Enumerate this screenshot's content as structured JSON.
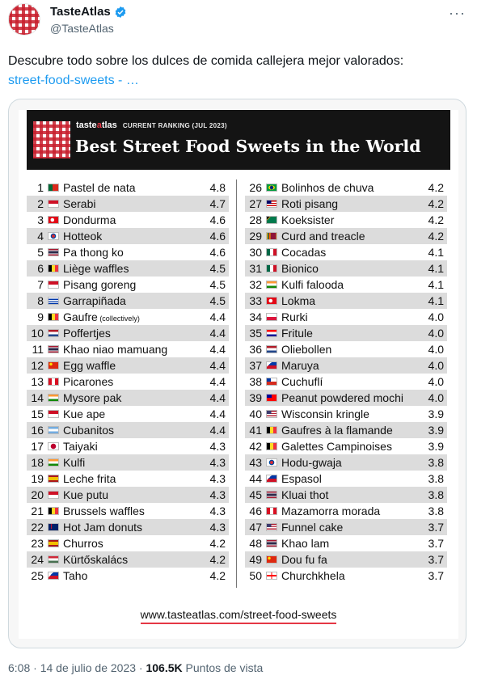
{
  "header": {
    "display_name": "TasteAtlas",
    "handle": "@TasteAtlas",
    "more_icon": "···"
  },
  "tweet": {
    "text": "Descubre todo sobre los dulces de comida callejera mejor valorados:",
    "link_text": "street-food-sweets - …"
  },
  "infographic": {
    "brand": {
      "prefix": "taste",
      "accent": "a",
      "suffix": "tlas"
    },
    "ranking_label": "CURRENT RANKING (JUL 2023)",
    "title": "Best Street Food Sweets in the World",
    "footer_url": "www.tasteatlas.com/street-food-sweets",
    "left": [
      {
        "rank": "1",
        "name": "Pastel de nata",
        "note": "",
        "score": "4.8",
        "flag": "portugal"
      },
      {
        "rank": "2",
        "name": "Serabi",
        "note": "",
        "score": "4.7",
        "flag": "indonesia"
      },
      {
        "rank": "3",
        "name": "Dondurma",
        "note": "",
        "score": "4.6",
        "flag": "turkey"
      },
      {
        "rank": "4",
        "name": "Hotteok",
        "note": "",
        "score": "4.6",
        "flag": "south-korea"
      },
      {
        "rank": "5",
        "name": "Pa thong ko",
        "note": "",
        "score": "4.6",
        "flag": "thailand"
      },
      {
        "rank": "6",
        "name": "Liège waffles",
        "note": "",
        "score": "4.5",
        "flag": "belgium"
      },
      {
        "rank": "7",
        "name": "Pisang goreng",
        "note": "",
        "score": "4.5",
        "flag": "indonesia"
      },
      {
        "rank": "8",
        "name": "Garrapiñada",
        "note": "",
        "score": "4.5",
        "flag": "uruguay"
      },
      {
        "rank": "9",
        "name": "Gaufre",
        "note": "(collectively)",
        "score": "4.4",
        "flag": "belgium"
      },
      {
        "rank": "10",
        "name": "Poffertjes",
        "note": "",
        "score": "4.4",
        "flag": "netherlands"
      },
      {
        "rank": "11",
        "name": "Khao niao mamuang",
        "note": "",
        "score": "4.4",
        "flag": "thailand"
      },
      {
        "rank": "12",
        "name": "Egg waffle",
        "note": "",
        "score": "4.4",
        "flag": "china"
      },
      {
        "rank": "13",
        "name": "Picarones",
        "note": "",
        "score": "4.4",
        "flag": "peru"
      },
      {
        "rank": "14",
        "name": "Mysore pak",
        "note": "",
        "score": "4.4",
        "flag": "india"
      },
      {
        "rank": "15",
        "name": "Kue ape",
        "note": "",
        "score": "4.4",
        "flag": "indonesia"
      },
      {
        "rank": "16",
        "name": "Cubanitos",
        "note": "",
        "score": "4.4",
        "flag": "argentina"
      },
      {
        "rank": "17",
        "name": "Taiyaki",
        "note": "",
        "score": "4.3",
        "flag": "japan"
      },
      {
        "rank": "18",
        "name": "Kulfi",
        "note": "",
        "score": "4.3",
        "flag": "india"
      },
      {
        "rank": "19",
        "name": "Leche frita",
        "note": "",
        "score": "4.3",
        "flag": "spain"
      },
      {
        "rank": "20",
        "name": "Kue putu",
        "note": "",
        "score": "4.3",
        "flag": "indonesia"
      },
      {
        "rank": "21",
        "name": "Brussels waffles",
        "note": "",
        "score": "4.3",
        "flag": "belgium"
      },
      {
        "rank": "22",
        "name": "Hot Jam donuts",
        "note": "",
        "score": "4.3",
        "flag": "australia"
      },
      {
        "rank": "23",
        "name": "Churros",
        "note": "",
        "score": "4.2",
        "flag": "spain"
      },
      {
        "rank": "24",
        "name": "Kürtőskalács",
        "note": "",
        "score": "4.2",
        "flag": "hungary"
      },
      {
        "rank": "25",
        "name": "Taho",
        "note": "",
        "score": "4.2",
        "flag": "philippines"
      }
    ],
    "right": [
      {
        "rank": "26",
        "name": "Bolinhos de chuva",
        "note": "",
        "score": "4.2",
        "flag": "brazil"
      },
      {
        "rank": "27",
        "name": "Roti pisang",
        "note": "",
        "score": "4.2",
        "flag": "malaysia"
      },
      {
        "rank": "28",
        "name": "Koeksister",
        "note": "",
        "score": "4.2",
        "flag": "south-africa"
      },
      {
        "rank": "29",
        "name": "Curd and treacle",
        "note": "",
        "score": "4.2",
        "flag": "sri-lanka"
      },
      {
        "rank": "30",
        "name": "Cocadas",
        "note": "",
        "score": "4.1",
        "flag": "mexico"
      },
      {
        "rank": "31",
        "name": "Bionico",
        "note": "",
        "score": "4.1",
        "flag": "mexico"
      },
      {
        "rank": "32",
        "name": "Kulfi falooda",
        "note": "",
        "score": "4.1",
        "flag": "india"
      },
      {
        "rank": "33",
        "name": "Lokma",
        "note": "",
        "score": "4.1",
        "flag": "turkey"
      },
      {
        "rank": "34",
        "name": "Rurki",
        "note": "",
        "score": "4.0",
        "flag": "poland"
      },
      {
        "rank": "35",
        "name": "Fritule",
        "note": "",
        "score": "4.0",
        "flag": "croatia"
      },
      {
        "rank": "36",
        "name": "Oliebollen",
        "note": "",
        "score": "4.0",
        "flag": "netherlands"
      },
      {
        "rank": "37",
        "name": "Maruya",
        "note": "",
        "score": "4.0",
        "flag": "philippines"
      },
      {
        "rank": "38",
        "name": "Cuchuflí",
        "note": "",
        "score": "4.0",
        "flag": "chile"
      },
      {
        "rank": "39",
        "name": "Peanut powdered mochi",
        "note": "",
        "score": "4.0",
        "flag": "taiwan"
      },
      {
        "rank": "40",
        "name": "Wisconsin kringle",
        "note": "",
        "score": "3.9",
        "flag": "usa"
      },
      {
        "rank": "41",
        "name": "Gaufres à la flamande",
        "note": "",
        "score": "3.9",
        "flag": "belgium"
      },
      {
        "rank": "42",
        "name": "Galettes Campinoises",
        "note": "",
        "score": "3.9",
        "flag": "belgium"
      },
      {
        "rank": "43",
        "name": "Hodu-gwaja",
        "note": "",
        "score": "3.8",
        "flag": "south-korea"
      },
      {
        "rank": "44",
        "name": "Espasol",
        "note": "",
        "score": "3.8",
        "flag": "philippines"
      },
      {
        "rank": "45",
        "name": "Kluai thot",
        "note": "",
        "score": "3.8",
        "flag": "thailand"
      },
      {
        "rank": "46",
        "name": "Mazamorra morada",
        "note": "",
        "score": "3.8",
        "flag": "peru"
      },
      {
        "rank": "47",
        "name": "Funnel cake",
        "note": "",
        "score": "3.7",
        "flag": "usa"
      },
      {
        "rank": "48",
        "name": "Khao lam",
        "note": "",
        "score": "3.7",
        "flag": "thailand"
      },
      {
        "rank": "49",
        "name": "Dou fu fa",
        "note": "",
        "score": "3.7",
        "flag": "china"
      },
      {
        "rank": "50",
        "name": "Churchkhela",
        "note": "",
        "score": "3.7",
        "flag": "georgia"
      }
    ]
  },
  "meta": {
    "time": "6:08",
    "separator": "·",
    "date": "14 de julio de 2023",
    "views": "106.5K",
    "views_label": "Puntos de vista"
  },
  "colors": {
    "link": "#1d9bf0",
    "accent_red": "#e53745",
    "verified_blue": "#1d9bf0"
  }
}
